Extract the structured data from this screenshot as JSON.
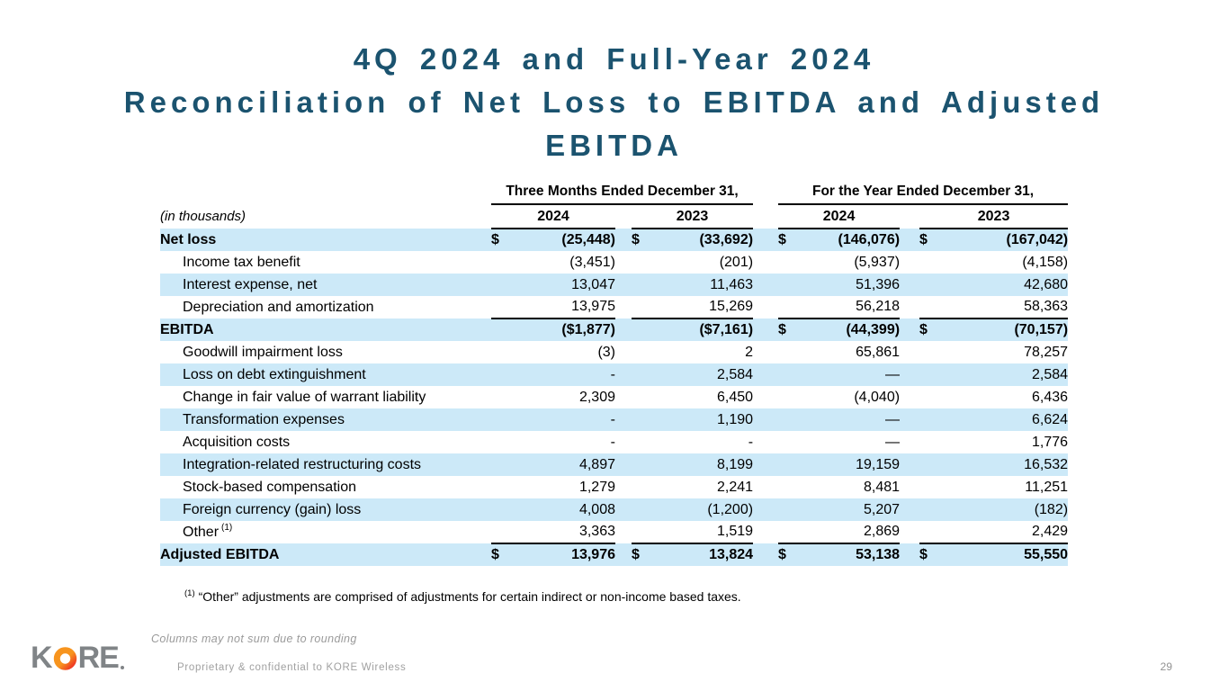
{
  "title": {
    "line1": "4Q 2024 and Full-Year 2024",
    "line2": "Reconciliation of Net Loss to EBITDA and Adjusted",
    "line3": "EBITDA"
  },
  "table": {
    "units_label": "(in thousands)",
    "col_groups": [
      {
        "label": "Three Months Ended December 31,",
        "cols": [
          "2024",
          "2023"
        ]
      },
      {
        "label": "For the Year Ended December 31,",
        "cols": [
          "2024",
          "2023"
        ]
      }
    ],
    "rows": [
      {
        "label": "Net loss",
        "bold": true,
        "indent": false,
        "shaded": true,
        "dollars": [
          "$",
          "$",
          "$",
          "$"
        ],
        "values": [
          "(25,448)",
          "(33,692)",
          "(146,076)",
          "(167,042)"
        ],
        "rule_below": false
      },
      {
        "label": "Income tax benefit",
        "bold": false,
        "indent": true,
        "shaded": false,
        "dollars": [
          "",
          "",
          "",
          ""
        ],
        "values": [
          "(3,451)",
          "(201)",
          "(5,937)",
          "(4,158)"
        ],
        "rule_below": false
      },
      {
        "label": "Interest expense, net",
        "bold": false,
        "indent": true,
        "shaded": true,
        "dollars": [
          "",
          "",
          "",
          ""
        ],
        "values": [
          "13,047",
          "11,463",
          "51,396",
          "42,680"
        ],
        "rule_below": false
      },
      {
        "label": "Depreciation and amortization",
        "bold": false,
        "indent": true,
        "shaded": false,
        "dollars": [
          "",
          "",
          "",
          ""
        ],
        "values": [
          "13,975",
          "15,269",
          "56,218",
          "58,363"
        ],
        "rule_below": true
      },
      {
        "label": "EBITDA",
        "bold": true,
        "indent": false,
        "shaded": true,
        "dollars": [
          "",
          "",
          "$",
          "$"
        ],
        "values": [
          "($1,877)",
          "($7,161)",
          "(44,399)",
          "(70,157)"
        ],
        "rule_below": false
      },
      {
        "label": "Goodwill impairment loss",
        "bold": false,
        "indent": true,
        "shaded": false,
        "dollars": [
          "",
          "",
          "",
          ""
        ],
        "values": [
          "(3)",
          "2",
          "65,861",
          "78,257"
        ],
        "rule_below": false
      },
      {
        "label": "Loss on debt extinguishment",
        "bold": false,
        "indent": true,
        "shaded": true,
        "dollars": [
          "",
          "",
          "",
          ""
        ],
        "values": [
          "-",
          "2,584",
          "—",
          "2,584"
        ],
        "rule_below": false
      },
      {
        "label": "Change in fair value of warrant liability",
        "bold": false,
        "indent": true,
        "shaded": false,
        "dollars": [
          "",
          "",
          "",
          ""
        ],
        "values": [
          "2,309",
          "6,450",
          "(4,040)",
          "6,436"
        ],
        "rule_below": false
      },
      {
        "label": "Transformation expenses",
        "bold": false,
        "indent": true,
        "shaded": true,
        "dollars": [
          "",
          "",
          "",
          ""
        ],
        "values": [
          "-",
          "1,190",
          "—",
          "6,624"
        ],
        "rule_below": false
      },
      {
        "label": "Acquisition costs",
        "bold": false,
        "indent": true,
        "shaded": false,
        "dollars": [
          "",
          "",
          "",
          ""
        ],
        "values": [
          "-",
          "-",
          "—",
          "1,776"
        ],
        "rule_below": false
      },
      {
        "label": "Integration-related restructuring costs",
        "bold": false,
        "indent": true,
        "shaded": true,
        "dollars": [
          "",
          "",
          "",
          ""
        ],
        "values": [
          "4,897",
          "8,199",
          "19,159",
          "16,532"
        ],
        "rule_below": false
      },
      {
        "label": "Stock-based compensation",
        "bold": false,
        "indent": true,
        "shaded": false,
        "dollars": [
          "",
          "",
          "",
          ""
        ],
        "values": [
          "1,279",
          "2,241",
          "8,481",
          "11,251"
        ],
        "rule_below": false
      },
      {
        "label": "Foreign currency (gain) loss",
        "bold": false,
        "indent": true,
        "shaded": true,
        "dollars": [
          "",
          "",
          "",
          ""
        ],
        "values": [
          "4,008",
          "(1,200)",
          "5,207",
          "(182)"
        ],
        "rule_below": false
      },
      {
        "label": "Other",
        "sup": "(1)",
        "bold": false,
        "indent": true,
        "shaded": false,
        "dollars": [
          "",
          "",
          "",
          ""
        ],
        "values": [
          "3,363",
          "1,519",
          "2,869",
          "2,429"
        ],
        "rule_below": true
      },
      {
        "label": "Adjusted EBITDA",
        "bold": true,
        "indent": false,
        "shaded": true,
        "dollars": [
          "$",
          "$",
          "$",
          "$"
        ],
        "values": [
          "13,976",
          "13,824",
          "53,138",
          "55,550"
        ],
        "rule_below": false
      }
    ]
  },
  "footnote": {
    "marker": "(1)",
    "text": "“Other” adjustments are comprised of adjustments for certain indirect or non-income based taxes."
  },
  "footer": {
    "rounding_note": "Columns may not sum due to rounding",
    "confidential": "Proprietary & confidential to KORE Wireless",
    "page_number": "29",
    "logo": {
      "k": "K",
      "re": "RE"
    }
  },
  "colors": {
    "title_blue": "#1b536f",
    "row_shade": "#cce9f8",
    "logo_gray": "#808487",
    "logo_orange": "#f7941e",
    "logo_red": "#ee3124"
  }
}
